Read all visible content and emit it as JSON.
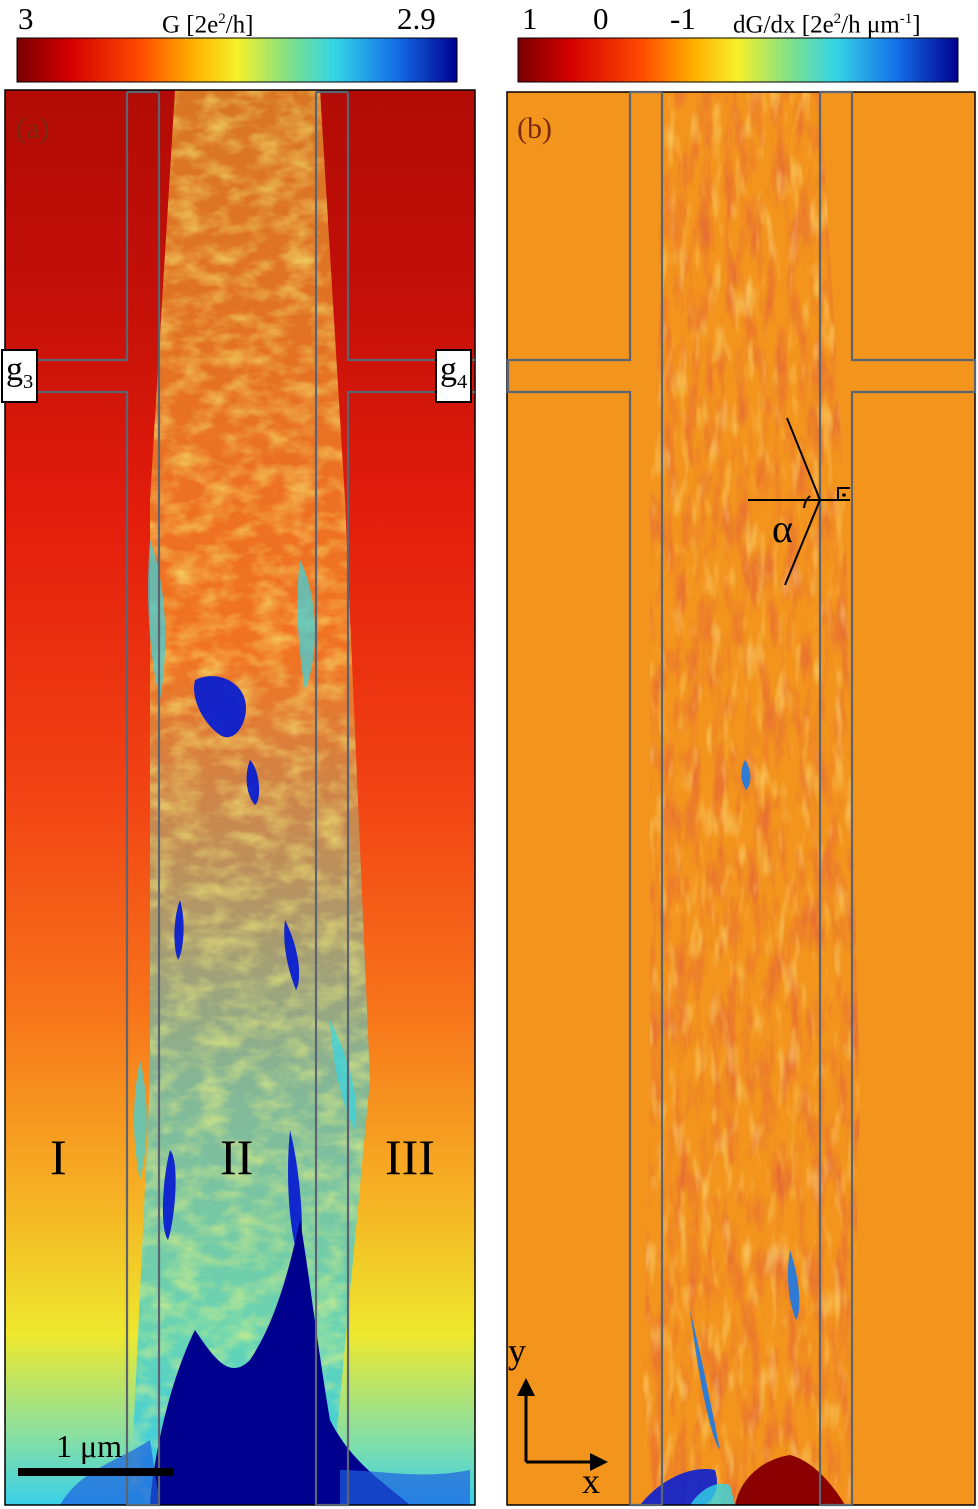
{
  "figure": {
    "panel_a": {
      "label": "(a)",
      "colorbar": {
        "min_label": "3",
        "max_label": "2.9",
        "title_main": "G [2e",
        "title_sup": "2",
        "title_tail": "/h]"
      },
      "gates": {
        "left": "g",
        "left_sub": "3",
        "right": "g",
        "right_sub": "4"
      },
      "regions": [
        "I",
        "II",
        "III"
      ],
      "scalebar": "1 μm"
    },
    "panel_b": {
      "label": "(b)",
      "colorbar": {
        "tick_1": "1",
        "tick_2": "0",
        "tick_3": "-1",
        "title_main": "dG/dx [2e",
        "title_sup": "2",
        "title_mid": "/h μm",
        "title_sup2": "-1",
        "title_tail": "]"
      },
      "angle_label": "α",
      "axes": {
        "x": "x",
        "y": "y"
      }
    },
    "colors": {
      "jet_dark_red": "#8b0000",
      "jet_red": "#e01010",
      "jet_orange": "#f79a1a",
      "jet_yellow": "#f2f02a",
      "jet_cyan": "#35d6e6",
      "jet_blue": "#0a1fd0",
      "jet_dark_blue": "#00008f",
      "outline_gray": "#5b6470"
    }
  }
}
